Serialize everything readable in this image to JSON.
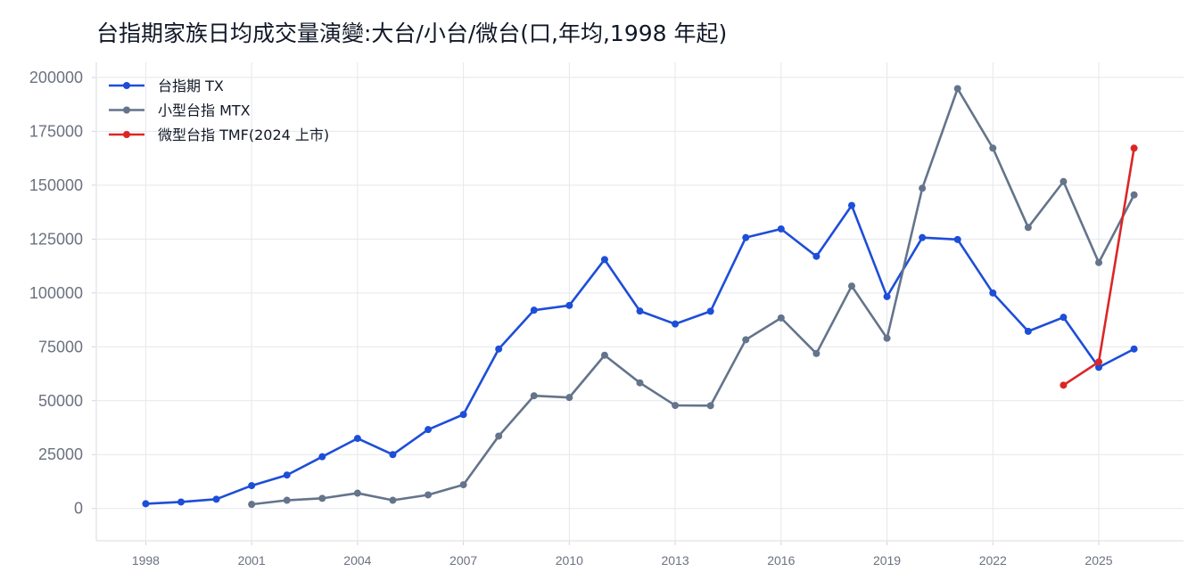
{
  "chart_data": {
    "type": "line",
    "title": "台指期家族日均成交量演變:大台/小台/微台(口,年均,1998 年起)",
    "xlabel": "",
    "ylabel": "",
    "xlim": [
      1996.6,
      2027.4
    ],
    "ylim": [
      -15000,
      207000
    ],
    "xticks": [
      1998,
      2001,
      2004,
      2007,
      2010,
      2013,
      2016,
      2019,
      2022,
      2025
    ],
    "yticks": [
      0,
      25000,
      50000,
      75000,
      100000,
      125000,
      150000,
      175000,
      200000
    ],
    "grid": true,
    "legend_position": "top-left",
    "series": [
      {
        "name": "台指期 TX",
        "color": "#1d4ed8",
        "x": [
          1998,
          1999,
          2000,
          2001,
          2002,
          2003,
          2004,
          2005,
          2006,
          2007,
          2008,
          2009,
          2010,
          2011,
          2012,
          2013,
          2014,
          2015,
          2016,
          2017,
          2018,
          2019,
          2020,
          2021,
          2022,
          2023,
          2024,
          2025,
          2026
        ],
        "y": [
          2200,
          3000,
          4300,
          10600,
          15500,
          24000,
          32500,
          25000,
          36600,
          43600,
          74000,
          92000,
          94200,
          115500,
          91600,
          85600,
          91500,
          125700,
          129700,
          117000,
          140600,
          98300,
          125700,
          124800,
          100000,
          82200,
          88700,
          65500,
          74000
        ]
      },
      {
        "name": "小型台指 MTX",
        "color": "#64748b",
        "x": [
          2001,
          2002,
          2003,
          2004,
          2005,
          2006,
          2007,
          2008,
          2009,
          2010,
          2011,
          2012,
          2013,
          2014,
          2015,
          2016,
          2017,
          2018,
          2019,
          2020,
          2021,
          2022,
          2023,
          2024,
          2025,
          2026
        ],
        "y": [
          1900,
          3800,
          4700,
          7100,
          3800,
          6300,
          11000,
          33600,
          52300,
          51500,
          71100,
          58300,
          47800,
          47700,
          78300,
          88400,
          71900,
          103200,
          79000,
          148600,
          194800,
          167200,
          130400,
          151700,
          114100,
          145500
        ]
      },
      {
        "name": "微型台指 TMF(2024 上市)",
        "color": "#dc2626",
        "x": [
          2024,
          2025,
          2026
        ],
        "y": [
          57200,
          68000,
          167200
        ]
      }
    ]
  }
}
